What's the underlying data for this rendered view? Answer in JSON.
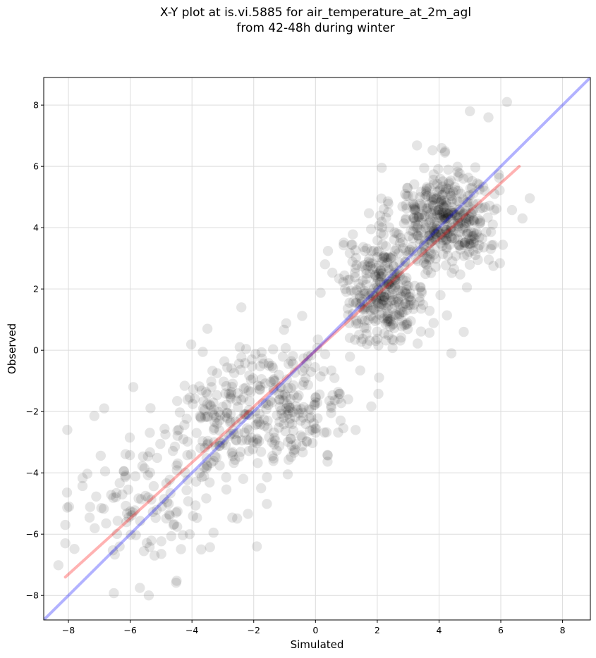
{
  "chart_data": {
    "type": "scatter",
    "title_line1": "X-Y plot at is.vi.5885 for air_temperature_at_2m_agl",
    "title_line2": "from 42-48h during winter",
    "xlabel": "Simulated",
    "ylabel": "Observed",
    "xlim": [
      -8.8,
      8.9
    ],
    "ylim": [
      -8.8,
      8.9
    ],
    "xticks": [
      -8,
      -6,
      -4,
      -2,
      0,
      2,
      4,
      6,
      8
    ],
    "yticks": [
      -8,
      -6,
      -4,
      -2,
      0,
      2,
      4,
      6,
      8
    ],
    "tick_labels": [
      "−8",
      "−6",
      "−4",
      "−2",
      "0",
      "2",
      "4",
      "6",
      "8"
    ],
    "grid": true,
    "points": {
      "color": "#000000",
      "opacity": 0.1,
      "n_approx": 1200,
      "clusters": [
        {
          "x": 4.2,
          "y": 4.3,
          "sx": 0.85,
          "sy": 0.85,
          "weight": 0.34
        },
        {
          "x": 2.2,
          "y": 1.9,
          "sx": 0.7,
          "sy": 0.85,
          "weight": 0.26
        },
        {
          "x": -0.8,
          "y": -1.7,
          "sx": 1.0,
          "sy": 1.0,
          "weight": 0.17
        },
        {
          "x": -3.0,
          "y": -2.5,
          "sx": 0.8,
          "sy": 1.1,
          "weight": 0.13
        },
        {
          "x": -5.6,
          "y": -4.8,
          "sx": 1.1,
          "sy": 1.3,
          "weight": 0.1
        }
      ],
      "noted": [
        {
          "x": 6.2,
          "y": 8.1
        },
        {
          "x": 5.0,
          "y": 7.8
        },
        {
          "x": 5.6,
          "y": 7.6
        },
        {
          "x": 6.7,
          "y": 4.3
        },
        {
          "x": -8.1,
          "y": -5.7
        },
        {
          "x": -8.1,
          "y": -6.3
        },
        {
          "x": -5.4,
          "y": -8.0
        },
        {
          "x": -3.7,
          "y": -6.5
        },
        {
          "x": -1.9,
          "y": -6.4
        },
        {
          "x": -3.5,
          "y": 0.7
        },
        {
          "x": 1.3,
          "y": -2.6
        },
        {
          "x": 4.4,
          "y": -0.1
        },
        {
          "x": -2.4,
          "y": 1.4
        },
        {
          "x": -5.9,
          "y": -1.2
        },
        {
          "x": 4.8,
          "y": 0.6
        }
      ]
    },
    "series": [
      {
        "kind": "fit",
        "color": "#ff0000",
        "opacity": 0.3,
        "x": [
          -8.1,
          6.6
        ],
        "y": [
          -7.4,
          6.0
        ]
      },
      {
        "kind": "identity",
        "color": "#0000ff",
        "opacity": 0.3,
        "x": [
          -8.8,
          8.9
        ],
        "y": [
          -8.8,
          8.9
        ]
      }
    ]
  }
}
